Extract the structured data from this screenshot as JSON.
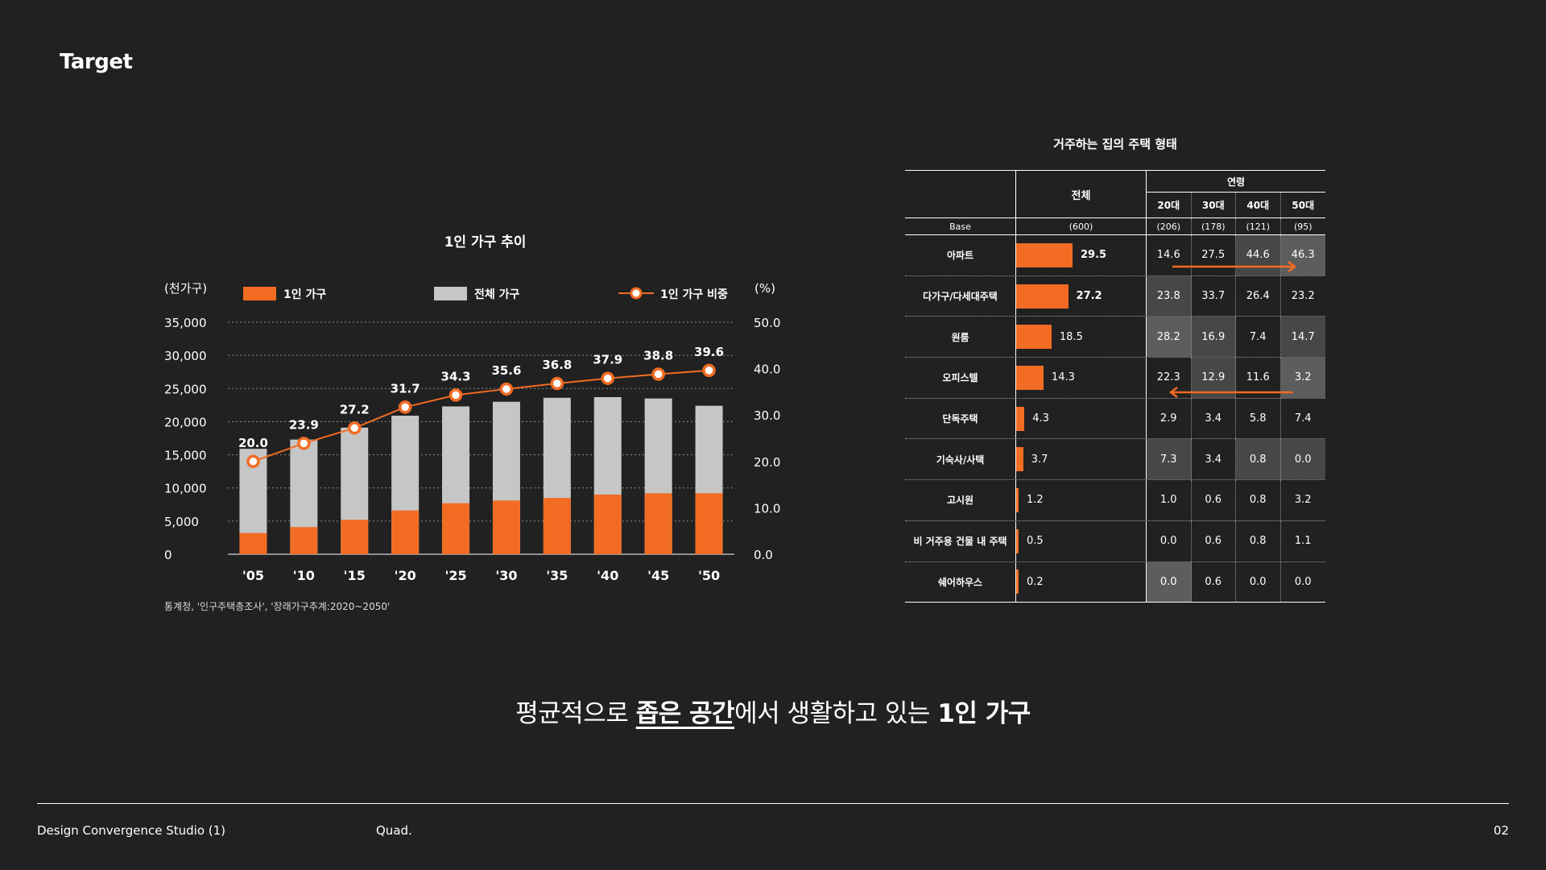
{
  "page": {
    "title": "Target",
    "page_number": "02"
  },
  "footer": {
    "left": "Design Convergence Studio (1)",
    "middle": "Quad."
  },
  "headline": {
    "pre": "평균적으로 ",
    "underline": "좁은 공간",
    "mid": "에서 생활하고 있는 ",
    "bold": "1인 가구"
  },
  "colors": {
    "background": "#212121",
    "orange": "#f26c24",
    "gray_bar": "#c6c6c6",
    "highlight_dark": "#474747",
    "highlight_light": "#5d5d5d"
  },
  "chart_data": {
    "type": "bar",
    "title": "1인 가구 추이",
    "left_unit": "(천가구)",
    "right_unit": "(%)",
    "categories": [
      "'05",
      "'10",
      "'15",
      "'20",
      "'25",
      "'30",
      "'35",
      "'40",
      "'45",
      "'50"
    ],
    "left_ticks": [
      "35,000",
      "30,000",
      "25,000",
      "20,000",
      "15,000",
      "10,000",
      "5,000",
      "0"
    ],
    "right_ticks": [
      "50.0",
      "40.0",
      "30.0",
      "20.0",
      "10.0",
      "0.0"
    ],
    "ylim_left": [
      0,
      35000
    ],
    "ylim_right": [
      0,
      50
    ],
    "series": [
      {
        "name": "전체 가구",
        "type": "bar",
        "values": [
          15900,
          17300,
          19100,
          20900,
          22300,
          23000,
          23600,
          23700,
          23500,
          22400
        ]
      },
      {
        "name": "1인 가구",
        "type": "bar",
        "values": [
          3200,
          4100,
          5200,
          6600,
          7700,
          8100,
          8500,
          9000,
          9200,
          9200
        ]
      },
      {
        "name": "1인 가구 비중",
        "type": "line",
        "axis": "right",
        "values": [
          20.0,
          23.9,
          27.2,
          31.7,
          34.3,
          35.6,
          36.8,
          37.9,
          38.8,
          39.6
        ],
        "labels": [
          "20.0",
          "23.9",
          "27.2",
          "31.7",
          "34.3",
          "35.6",
          "36.8",
          "37.9",
          "38.8",
          "39.6"
        ]
      }
    ],
    "legend_position": "top",
    "grid": "dotted horizontal",
    "source": "통계청, '인구주택총조사', '장래가구추계:2020~2050'"
  },
  "table": {
    "title": "거주하는 집의 주택 형태",
    "header_total": "전체",
    "header_age_group": "연령",
    "age_columns": [
      "20대",
      "30대",
      "40대",
      "50대"
    ],
    "base": {
      "label": "Base",
      "total": "(600)",
      "ages": [
        "(206)",
        "(178)",
        "(121)",
        "(95)"
      ]
    },
    "rows": [
      {
        "label": "아파트",
        "total": 29.5,
        "total_label": "29.5",
        "ages": [
          "14.6",
          "27.5",
          "44.6",
          "46.3"
        ]
      },
      {
        "label": "다가구/다세대주택",
        "total": 27.2,
        "total_label": "27.2",
        "ages": [
          "23.8",
          "33.7",
          "26.4",
          "23.2"
        ]
      },
      {
        "label": "원룸",
        "total": 18.5,
        "total_label": "18.5",
        "ages": [
          "28.2",
          "16.9",
          "7.4",
          "14.7"
        ]
      },
      {
        "label": "오피스텔",
        "total": 14.3,
        "total_label": "14.3",
        "ages": [
          "22.3",
          "12.9",
          "11.6",
          "3.2"
        ]
      },
      {
        "label": "단독주택",
        "total": 4.3,
        "total_label": "4.3",
        "ages": [
          "2.9",
          "3.4",
          "5.8",
          "7.4"
        ]
      },
      {
        "label": "기숙사/사택",
        "total": 3.7,
        "total_label": "3.7",
        "ages": [
          "7.3",
          "3.4",
          "0.8",
          "0.0"
        ]
      },
      {
        "label": "고시원",
        "total": 1.2,
        "total_label": "1.2",
        "ages": [
          "1.0",
          "0.6",
          "0.8",
          "3.2"
        ]
      },
      {
        "label": "비 거주용 건물 내 주택",
        "total": 0.5,
        "total_label": "0.5",
        "ages": [
          "0.0",
          "0.6",
          "0.8",
          "1.1"
        ]
      },
      {
        "label": "쉐어하우스",
        "total": 0.2,
        "total_label": "0.2",
        "ages": [
          "0.0",
          "0.6",
          "0.0",
          "0.0"
        ]
      }
    ],
    "highlight": [
      [
        0,
        0,
        1,
        2
      ],
      [
        1,
        0,
        0,
        0
      ],
      [
        2,
        1,
        0,
        1
      ],
      [
        3,
        1,
        0,
        2
      ],
      [
        0,
        0,
        0,
        0
      ],
      [
        1,
        0,
        1,
        1
      ],
      [
        0,
        0,
        0,
        0
      ],
      [
        0,
        0,
        0,
        0
      ],
      [
        2,
        0,
        0,
        0
      ]
    ]
  }
}
